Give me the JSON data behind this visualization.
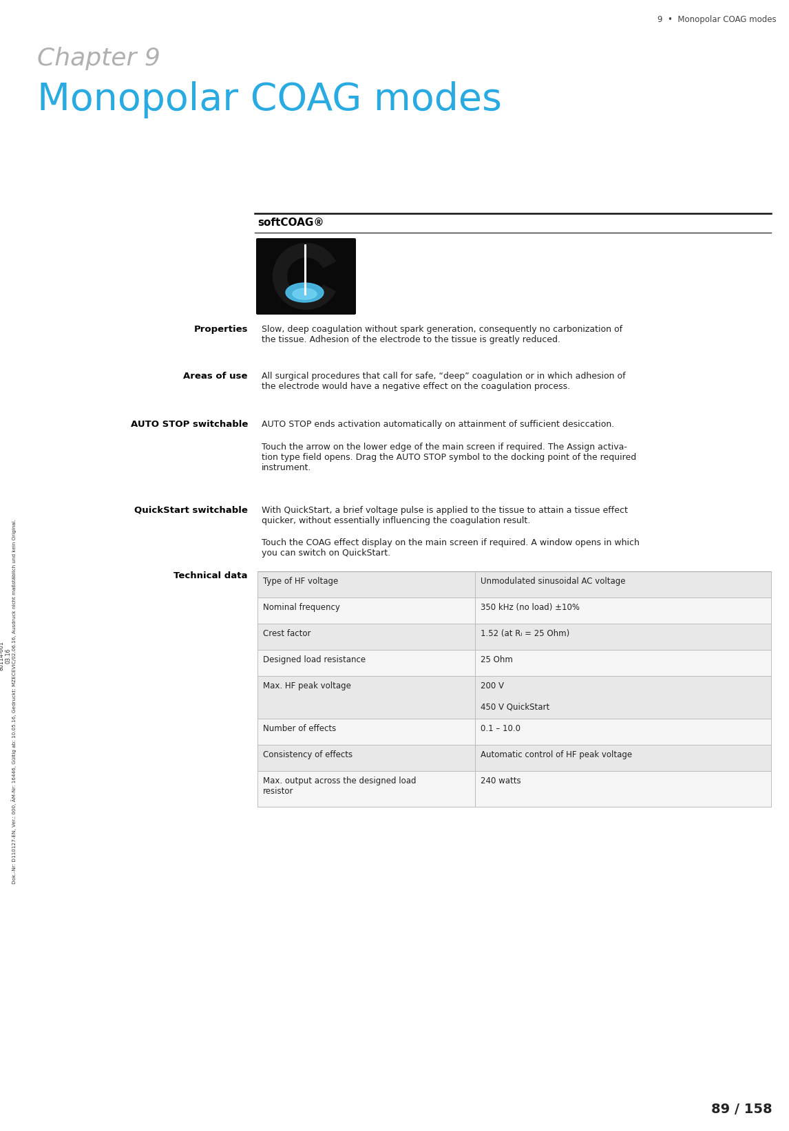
{
  "header_text": "9  •  Monopolar COAG modes",
  "chapter_label": "Chapter 9",
  "chapter_title": "Monopolar COAG modes",
  "section_title": "softCOAG®",
  "bg_color": "#ffffff",
  "chapter_label_color": "#b0b0b0",
  "chapter_title_color": "#29abe2",
  "header_color": "#444444",
  "body_color": "#222222",
  "sidebar_text": "Dok.-Nr: D110127-EN, Ver.: 000, ÄM-Nr: 16446, Gültig ab: 10.05.16, Gedruckt: MZECEVIC/02.06.16, Ausdruck nicht maßstäblich und kein Original.",
  "sidebar_text2": "80114-601\n03.16",
  "page_number": "89 / 158",
  "table_rows": [
    {
      "left": "Type of HF voltage",
      "right": "Unmodulated sinusoidal AC voltage",
      "bg": "#e8e8e8"
    },
    {
      "left": "Nominal frequency",
      "right": "350 kHz (no load) ±10%",
      "bg": "#f5f5f5"
    },
    {
      "left": "Crest factor",
      "right": "1.52 (at Rₗ = 25 Ohm)",
      "bg": "#e8e8e8"
    },
    {
      "left": "Designed load resistance",
      "right": "25 Ohm",
      "bg": "#f5f5f5"
    },
    {
      "left": "Max. HF peak voltage",
      "right": "200 V\n\n450 V QuickStart",
      "bg": "#e8e8e8"
    },
    {
      "left": "Number of effects",
      "right": "0.1 – 10.0",
      "bg": "#f5f5f5"
    },
    {
      "left": "Consistency of effects",
      "right": "Automatic control of HF peak voltage",
      "bg": "#e8e8e8"
    },
    {
      "left": "Max. output across the designed load\nresistor",
      "right": "240 watts",
      "bg": "#f5f5f5"
    }
  ]
}
